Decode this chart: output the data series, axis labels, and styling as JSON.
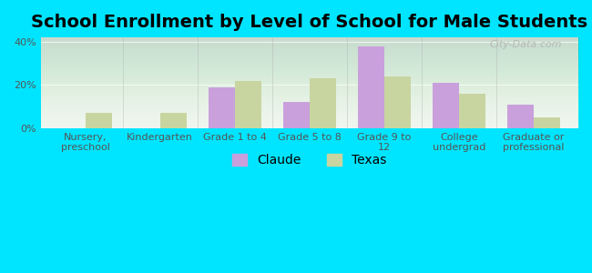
{
  "title": "School Enrollment by Level of School for Male Students",
  "categories": [
    "Nursery,\npreschool",
    "Kindergarten",
    "Grade 1 to 4",
    "Grade 5 to 8",
    "Grade 9 to\n12",
    "College\nundergrad",
    "Graduate or\nprofessional"
  ],
  "claude_values": [
    0,
    0,
    19,
    12,
    38,
    21,
    11
  ],
  "texas_values": [
    7,
    7,
    22,
    23,
    24,
    16,
    5
  ],
  "claude_color": "#c9a0dc",
  "texas_color": "#c8d5a0",
  "background_color": "#00e5ff",
  "ylabel_ticks": [
    0,
    20,
    40
  ],
  "ylim": [
    0,
    42
  ],
  "legend_labels": [
    "Claude",
    "Texas"
  ],
  "title_fontsize": 14,
  "tick_fontsize": 8,
  "legend_fontsize": 10,
  "bar_width": 0.35,
  "watermark": "City-Data.com"
}
